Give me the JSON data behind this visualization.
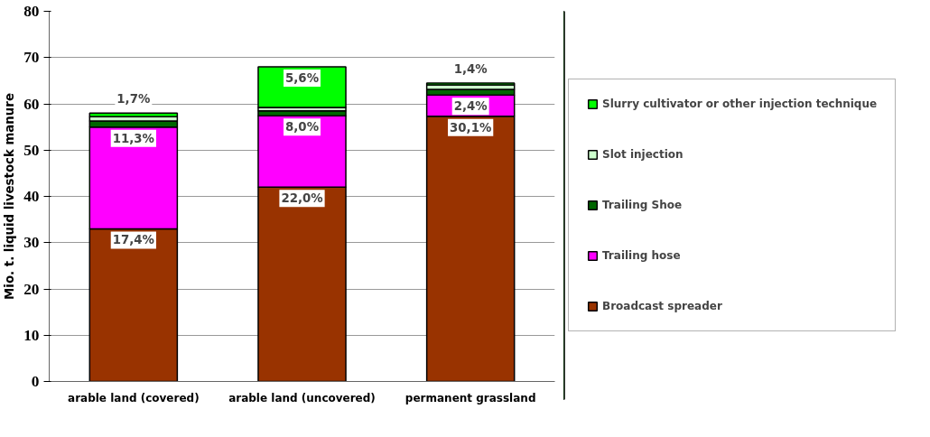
{
  "chart_data": {
    "type": "bar",
    "stacked": true,
    "ylabel": "Mio. t. liquid livestock manure",
    "categories": [
      "arable land (covered)",
      "arable land (uncovered)",
      "permanent grassland"
    ],
    "series": [
      {
        "name": "Broadcast spreader",
        "color": "#993300",
        "values": [
          33,
          42,
          57.3
        ]
      },
      {
        "name": "Trailing hose",
        "color": "#ff00ff",
        "values": [
          22,
          15.4,
          4.6
        ]
      },
      {
        "name": "Trailing Shoe",
        "color": "#006600",
        "values": [
          1.3,
          1.1,
          1.2
        ]
      },
      {
        "name": "Slot injection",
        "color": "#ccffcc",
        "values": [
          0.9,
          0.7,
          1.0
        ]
      },
      {
        "name": "Slurry cultivator or other injection technique",
        "color": "#00ff00",
        "values": [
          0.8,
          8.8,
          0.4
        ]
      }
    ],
    "annotations": [
      {
        "text": "17,4%",
        "x": "arable land (covered)",
        "y": 33
      },
      {
        "text": "22,0%",
        "x": "arable land (uncovered)",
        "y": 42
      },
      {
        "text": "30,1%",
        "x": "permanent grassland",
        "y": 57.3
      },
      {
        "text": "11,3%",
        "x": "arable land (covered)",
        "y": 55
      },
      {
        "text": "8,0%",
        "x": "arable land (uncovered)",
        "y": 57.4
      },
      {
        "text": "2,4%",
        "x": "permanent grassland",
        "y": 61.9
      },
      {
        "text": "5,6%",
        "x": "arable land (uncovered)",
        "y": 68
      },
      {
        "text": "1,7%",
        "x": "arable land (covered)",
        "y": 58
      },
      {
        "text": "1,4%",
        "x": "permanent grassland",
        "y": 64.5
      }
    ],
    "ylim": [
      0,
      80
    ],
    "yticks": [
      0,
      10,
      20,
      30,
      40,
      50,
      60,
      70,
      80
    ],
    "grid": "y",
    "legend": "right"
  }
}
